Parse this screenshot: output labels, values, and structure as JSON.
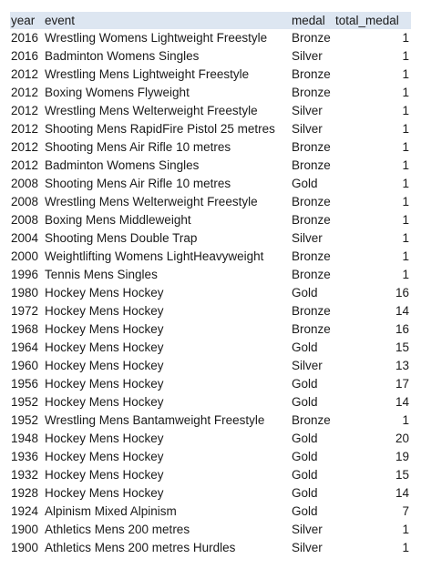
{
  "table": {
    "headers": {
      "year": "year",
      "event": "event",
      "medal": "medal",
      "total_medal": "total_medal"
    },
    "rows": [
      {
        "year": "2016",
        "event": "Wrestling Womens Lightweight Freestyle",
        "medal": "Bronze",
        "total_medal": "1"
      },
      {
        "year": "2016",
        "event": "Badminton Womens Singles",
        "medal": "Silver",
        "total_medal": "1"
      },
      {
        "year": "2012",
        "event": "Wrestling Mens Lightweight Freestyle",
        "medal": "Bronze",
        "total_medal": "1"
      },
      {
        "year": "2012",
        "event": "Boxing Womens Flyweight",
        "medal": "Bronze",
        "total_medal": "1"
      },
      {
        "year": "2012",
        "event": "Wrestling Mens Welterweight Freestyle",
        "medal": "Silver",
        "total_medal": "1"
      },
      {
        "year": "2012",
        "event": "Shooting Mens RapidFire Pistol 25 metres",
        "medal": "Silver",
        "total_medal": "1"
      },
      {
        "year": "2012",
        "event": "Shooting Mens Air Rifle 10 metres",
        "medal": "Bronze",
        "total_medal": "1"
      },
      {
        "year": "2012",
        "event": "Badminton Womens Singles",
        "medal": "Bronze",
        "total_medal": "1"
      },
      {
        "year": "2008",
        "event": "Shooting Mens Air Rifle 10 metres",
        "medal": "Gold",
        "total_medal": "1"
      },
      {
        "year": "2008",
        "event": "Wrestling Mens Welterweight Freestyle",
        "medal": "Bronze",
        "total_medal": "1"
      },
      {
        "year": "2008",
        "event": "Boxing Mens Middleweight",
        "medal": "Bronze",
        "total_medal": "1"
      },
      {
        "year": "2004",
        "event": "Shooting Mens Double Trap",
        "medal": "Silver",
        "total_medal": "1"
      },
      {
        "year": "2000",
        "event": "Weightlifting Womens LightHeavyweight",
        "medal": "Bronze",
        "total_medal": "1"
      },
      {
        "year": "1996",
        "event": "Tennis Mens Singles",
        "medal": "Bronze",
        "total_medal": "1"
      },
      {
        "year": "1980",
        "event": "Hockey Mens Hockey",
        "medal": "Gold",
        "total_medal": "16"
      },
      {
        "year": "1972",
        "event": "Hockey Mens Hockey",
        "medal": "Bronze",
        "total_medal": "14"
      },
      {
        "year": "1968",
        "event": "Hockey Mens Hockey",
        "medal": "Bronze",
        "total_medal": "16"
      },
      {
        "year": "1964",
        "event": "Hockey Mens Hockey",
        "medal": "Gold",
        "total_medal": "15"
      },
      {
        "year": "1960",
        "event": "Hockey Mens Hockey",
        "medal": "Silver",
        "total_medal": "13"
      },
      {
        "year": "1956",
        "event": "Hockey Mens Hockey",
        "medal": "Gold",
        "total_medal": "17"
      },
      {
        "year": "1952",
        "event": "Hockey Mens Hockey",
        "medal": "Gold",
        "total_medal": "14"
      },
      {
        "year": "1952",
        "event": "Wrestling Mens Bantamweight Freestyle",
        "medal": "Bronze",
        "total_medal": "1"
      },
      {
        "year": "1948",
        "event": "Hockey Mens Hockey",
        "medal": "Gold",
        "total_medal": "20"
      },
      {
        "year": "1936",
        "event": "Hockey Mens Hockey",
        "medal": "Gold",
        "total_medal": "19"
      },
      {
        "year": "1932",
        "event": "Hockey Mens Hockey",
        "medal": "Gold",
        "total_medal": "15"
      },
      {
        "year": "1928",
        "event": "Hockey Mens Hockey",
        "medal": "Gold",
        "total_medal": "14"
      },
      {
        "year": "1924",
        "event": "Alpinism Mixed Alpinism",
        "medal": "Gold",
        "total_medal": "7"
      },
      {
        "year": "1900",
        "event": "Athletics Mens 200 metres",
        "medal": "Silver",
        "total_medal": "1"
      },
      {
        "year": "1900",
        "event": "Athletics Mens 200 metres Hurdles",
        "medal": "Silver",
        "total_medal": "1"
      }
    ]
  },
  "colors": {
    "header_background": "#dde6f1",
    "text": "#1a1a1a"
  }
}
